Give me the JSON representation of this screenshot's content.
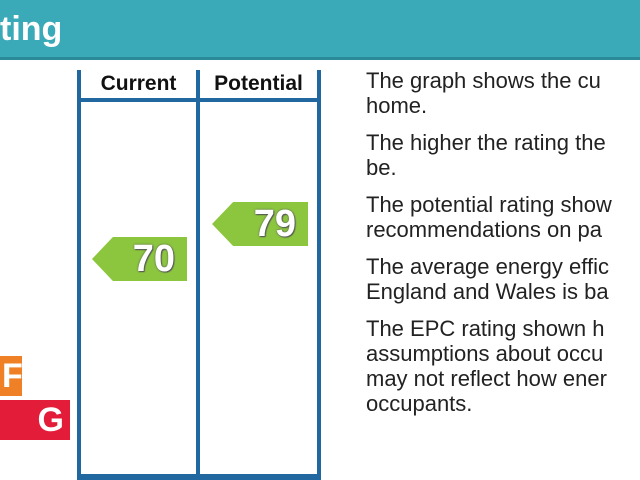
{
  "header": {
    "title": "ting"
  },
  "bands": {
    "f_label": "F",
    "g_label": "G",
    "f_color": "#ef8026",
    "g_color": "#e31d39"
  },
  "columns": {
    "current_label": "Current",
    "potential_label": "Potential"
  },
  "ratings": {
    "current": "70",
    "potential": "79",
    "arrow_color": "#8cc63f"
  },
  "info": {
    "paragraphs": [
      [
        "The graph shows the cu",
        "home."
      ],
      [
        "The higher the rating the",
        "be."
      ],
      [
        "The potential rating show",
        "recommendations on pa"
      ],
      [
        "The average energy effic",
        "England and Wales is ba"
      ],
      [
        "The EPC rating shown h",
        "assumptions about occu",
        "may not reflect how ener",
        "occupants."
      ]
    ]
  },
  "colors": {
    "header_bg": "#3aa9b8",
    "frame": "#2268a0"
  }
}
